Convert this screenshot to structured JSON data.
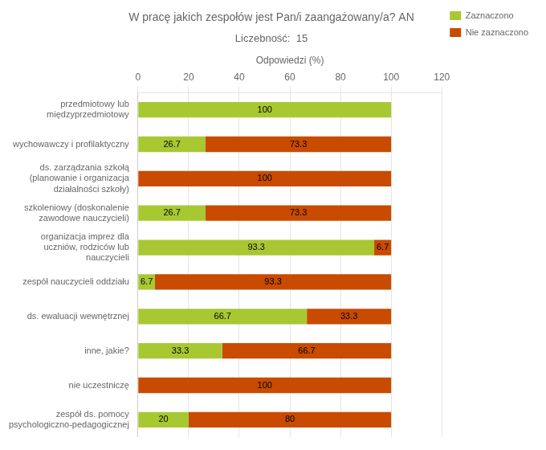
{
  "chart_data": {
    "type": "bar",
    "orientation": "horizontal",
    "stacked": true,
    "title": "W pracę jakich zespołów jest Pan/i zaangażowany/a? AN",
    "subtitle": "Liczebność:  15",
    "xlabel": "Odpowiedzi (%)",
    "categories": [
      "przedmiotowy lub\nmiędzyprzedmiotowy",
      "wychowawczy i profilaktyczny",
      "ds. zarządzania szkołą\n(planowanie i organizacja\ndziałalności szkoły)",
      "szkoleniowy (doskonalenie\nzawodowe nauczycieli)",
      "organizacja imprez dla\nuczniów, rodziców lub\nnauczycieli",
      "zespół nauczycieli oddziału",
      "ds. ewaluacji wewnętrznej",
      "inne, jakie?",
      "nie uczestniczę",
      "zespół ds. pomocy\npsychologiczno-pedagogicznej"
    ],
    "series": [
      {
        "name": "Zaznaczono",
        "color": "#a8c832",
        "values": [
          100,
          26.7,
          0,
          26.7,
          93.3,
          6.7,
          66.7,
          33.3,
          0,
          20
        ]
      },
      {
        "name": "Nie zaznaczono",
        "color": "#c84b00",
        "values": [
          0,
          73.3,
          100,
          73.3,
          6.7,
          93.3,
          33.3,
          66.7,
          100,
          80
        ]
      }
    ],
    "xlim": [
      0,
      120
    ],
    "xticks": [
      0,
      20,
      40,
      60,
      80,
      100,
      120
    ],
    "grid": true,
    "legend": "right",
    "data_labels": true
  }
}
